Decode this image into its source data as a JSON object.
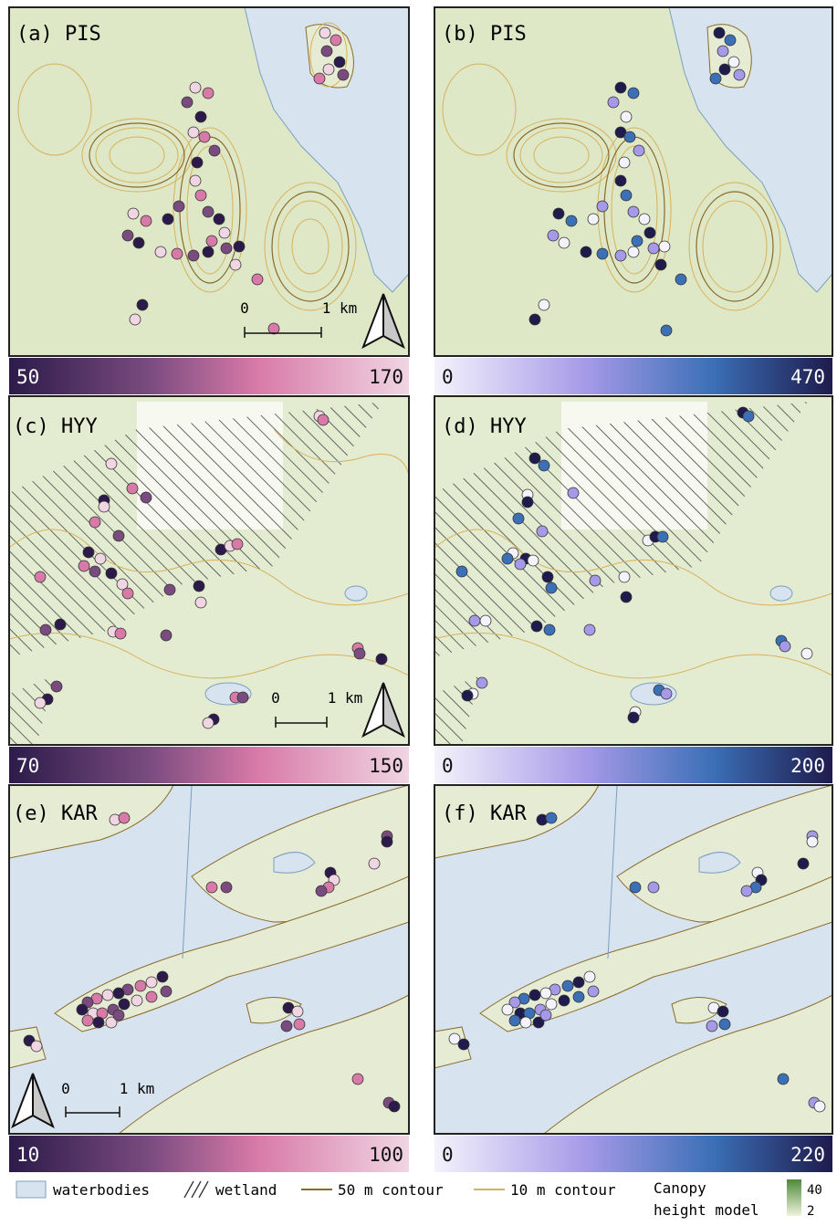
{
  "panels": [
    {
      "id": "a",
      "label": "(a) PIS",
      "site": "PIS",
      "scale": {
        "zero": "0",
        "dist": "1 km"
      },
      "north_arrow": true,
      "colorbar": {
        "min": "50",
        "max": "170",
        "palette": "purple-pink"
      }
    },
    {
      "id": "b",
      "label": "(b) PIS",
      "site": "PIS",
      "scale": null,
      "north_arrow": false,
      "colorbar": {
        "min": "0",
        "max": "470",
        "palette": "white-blue"
      }
    },
    {
      "id": "c",
      "label": "(c) HYY",
      "site": "HYY",
      "scale": {
        "zero": "0",
        "dist": "1 km"
      },
      "north_arrow": true,
      "colorbar": {
        "min": "70",
        "max": "150",
        "palette": "purple-pink"
      }
    },
    {
      "id": "d",
      "label": "(d) HYY",
      "site": "HYY",
      "scale": null,
      "north_arrow": false,
      "colorbar": {
        "min": "0",
        "max": "200",
        "palette": "white-blue"
      }
    },
    {
      "id": "e",
      "label": "(e) KAR",
      "site": "KAR",
      "scale": {
        "zero": "0",
        "dist": "1 km"
      },
      "north_arrow": true,
      "colorbar": {
        "min": "10",
        "max": "100",
        "palette": "purple-pink"
      }
    },
    {
      "id": "f",
      "label": "(f) KAR",
      "site": "KAR",
      "scale": null,
      "north_arrow": false,
      "colorbar": {
        "min": "0",
        "max": "220",
        "palette": "white-blue"
      }
    }
  ],
  "legend": {
    "waterbodies": "waterbodies",
    "wetland": "wetland",
    "contour50": "50 m contour",
    "contour10": "10 m contour",
    "chm_line1": "Canopy",
    "chm_line2": "height model",
    "chm_max": "40",
    "chm_min": "2"
  },
  "colors": {
    "water": "#d7e3ee",
    "water_edge": "#7d9fc0",
    "land": "#eef1dc",
    "forest_light": "#cfe1b3",
    "forest_dark": "#8fb66c",
    "contour50": "#8a6a2a",
    "contour10": "#d7b15a",
    "frame": "#222222",
    "purple_pink": [
      "#2c1b4a",
      "#7a4b7f",
      "#d87aa8",
      "#f0d5e2"
    ],
    "white_blue": [
      "#f4f2fb",
      "#a69ae8",
      "#3b6fb6",
      "#1f1b4d"
    ]
  }
}
